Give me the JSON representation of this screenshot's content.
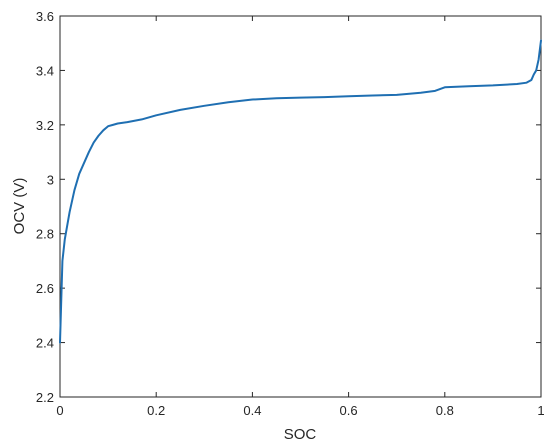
{
  "chart_data": {
    "type": "line",
    "title": "",
    "xlabel": "SOC",
    "ylabel": "OCV (V)",
    "xlim": [
      0,
      1
    ],
    "ylim": [
      2.2,
      3.6
    ],
    "grid": false,
    "legend": "none",
    "x_ticks": [
      "0",
      "0.2",
      "0.4",
      "0.6",
      "0.8",
      "1"
    ],
    "y_ticks": [
      "2.2",
      "2.4",
      "2.6",
      "2.8",
      "3",
      "3.2",
      "3.4",
      "3.6"
    ],
    "series": [
      {
        "color": "#1f6fb2",
        "x": [
          0.0,
          0.005,
          0.01,
          0.02,
          0.03,
          0.04,
          0.05,
          0.06,
          0.07,
          0.08,
          0.09,
          0.1,
          0.11,
          0.12,
          0.14,
          0.17,
          0.2,
          0.25,
          0.3,
          0.35,
          0.4,
          0.45,
          0.5,
          0.55,
          0.6,
          0.65,
          0.7,
          0.75,
          0.78,
          0.8,
          0.85,
          0.9,
          0.95,
          0.97,
          0.98,
          0.985,
          0.99,
          0.995,
          1.0
        ],
        "y": [
          2.4,
          2.7,
          2.78,
          2.88,
          2.96,
          3.02,
          3.06,
          3.1,
          3.135,
          3.16,
          3.18,
          3.195,
          3.2,
          3.205,
          3.21,
          3.22,
          3.235,
          3.255,
          3.27,
          3.283,
          3.293,
          3.298,
          3.3,
          3.302,
          3.305,
          3.308,
          3.31,
          3.318,
          3.325,
          3.338,
          3.342,
          3.345,
          3.35,
          3.355,
          3.365,
          3.385,
          3.4,
          3.44,
          3.51
        ]
      }
    ]
  }
}
